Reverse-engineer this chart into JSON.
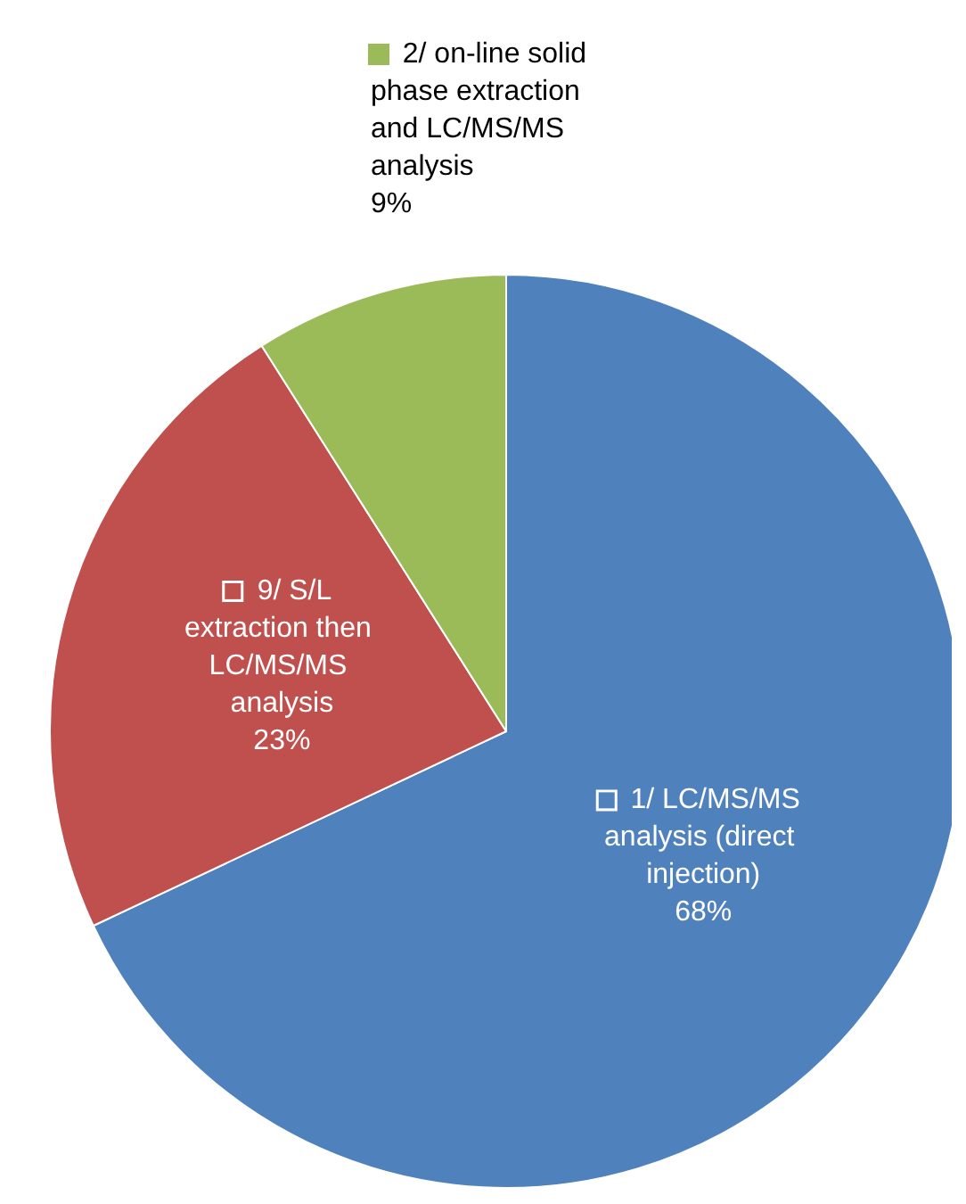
{
  "chart_data": {
    "type": "pie",
    "categories": [
      "1/ LC/MS/MS analysis (direct injection)",
      "9/ S/L extraction then LC/MS/MS analysis",
      "2/ on-line solid phase extraction and LC/MS/MS analysis"
    ],
    "values": [
      68,
      23,
      9
    ],
    "colors": [
      "#4f81bd",
      "#c0504d",
      "#9bbb59"
    ],
    "value_labels": [
      "68%",
      "23%",
      "9%"
    ],
    "legend": "top"
  }
}
